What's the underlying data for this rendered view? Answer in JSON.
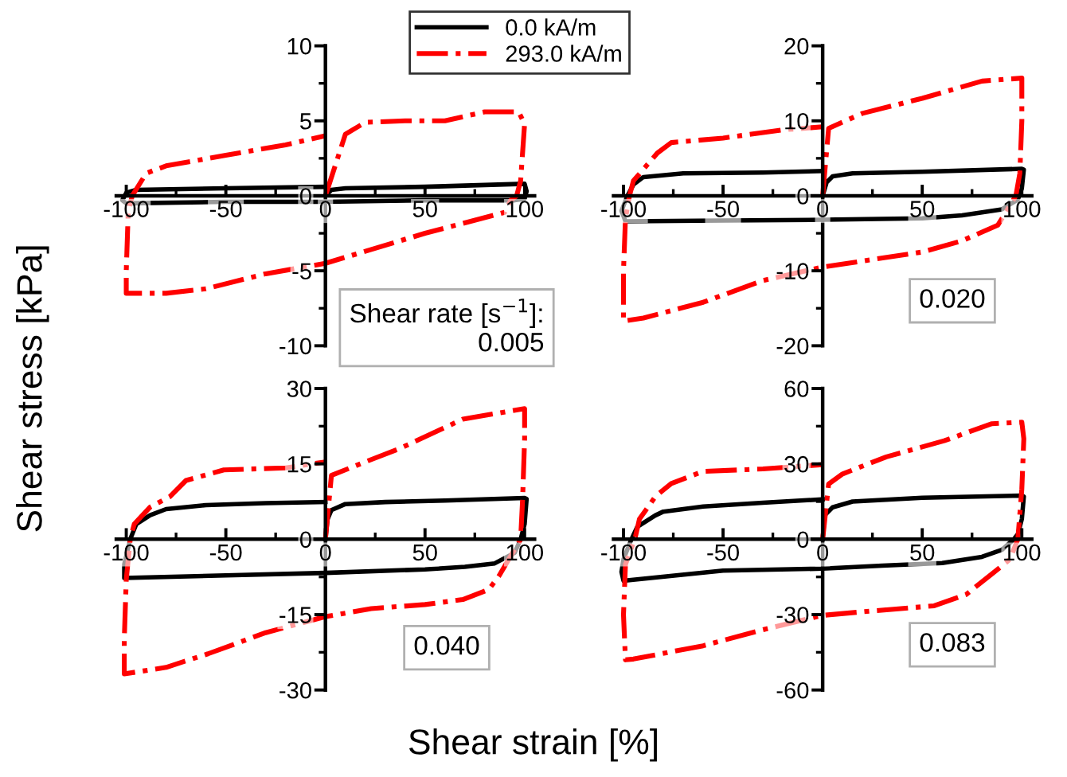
{
  "chart_data": [
    {
      "type": "line",
      "xlabel": "Shear strain [%]",
      "ylabel": "Shear stress [kPa]",
      "legend": "top",
      "xlim": [
        -105,
        105
      ],
      "xticks": [
        -100,
        -50,
        0,
        50,
        100
      ],
      "ylim": [
        -10,
        10
      ],
      "yticks": [
        -10,
        -5,
        0,
        5,
        10
      ],
      "annotations": [
        "Shear rate [s$^{−1}$]:\n0.005"
      ],
      "series": [
        {
          "name": "0.0 kA/m",
          "color": "#000000",
          "line_style": "solid",
          "x": [
            0,
            3,
            10,
            50,
            100,
            101,
            100,
            95,
            50,
            0,
            -50,
            -100,
            -102,
            -100,
            -95,
            -50,
            0
          ],
          "values": [
            0,
            0.4,
            0.5,
            0.6,
            0.8,
            0.3,
            -0.2,
            -0.3,
            -0.3,
            -0.4,
            -0.4,
            -0.5,
            -0.3,
            0.2,
            0.4,
            0.5,
            0.6
          ]
        },
        {
          "name": "293.0 kA/m",
          "color": "#ff0000",
          "line_style": "dashdot",
          "x": [
            0,
            10,
            20,
            40,
            60,
            80,
            97,
            100,
            98,
            96,
            93,
            90,
            50,
            0,
            -30,
            -60,
            -80,
            -100,
            -100,
            -99,
            -97,
            -90,
            -80,
            -50,
            -20,
            0
          ],
          "values": [
            0,
            4.1,
            4.9,
            5.0,
            5.0,
            5.6,
            5.6,
            4.8,
            1,
            0,
            -0.3,
            -1.1,
            -2.5,
            -4.5,
            -5.2,
            -6.2,
            -6.5,
            -6.5,
            -5,
            -1,
            0,
            1.5,
            2.0,
            2.7,
            3.4,
            4.0
          ]
        }
      ]
    },
    {
      "type": "line",
      "xlim": [
        -105,
        105
      ],
      "xticks": [
        -100,
        -50,
        0,
        50,
        100
      ],
      "ylim": [
        -20,
        20
      ],
      "yticks": [
        -20,
        -10,
        0,
        10,
        20
      ],
      "annotations": [
        "0.020"
      ],
      "series": [
        {
          "color": "#000000",
          "line_style": "solid",
          "x": [
            0,
            2,
            5,
            15,
            50,
            100,
            101,
            100,
            98,
            90,
            70,
            50,
            0,
            -50,
            -99,
            -101,
            -98,
            -95,
            -90,
            -70,
            -30,
            0
          ],
          "values": [
            0,
            1.8,
            2.6,
            3.0,
            3.2,
            3.6,
            3.5,
            1,
            -0.5,
            -1.8,
            -2.6,
            -3.0,
            -3.2,
            -3.3,
            -3.4,
            -2,
            0,
            1.5,
            2.5,
            3.0,
            3.1,
            3.3
          ]
        },
        {
          "color": "#ff0000",
          "line_style": "dashdot",
          "x": [
            0,
            3,
            20,
            50,
            80,
            100,
            100,
            99,
            97,
            88,
            70,
            50,
            0,
            -30,
            -60,
            -90,
            -100,
            -100,
            -99,
            -97,
            -95,
            -83,
            -76,
            -50,
            -20,
            0
          ],
          "values": [
            0,
            9,
            11,
            13,
            15.3,
            15.7,
            10,
            3,
            0,
            -3.9,
            -6,
            -7.5,
            -9.5,
            -11.3,
            -14.2,
            -16.3,
            -16.7,
            -10,
            -3,
            0,
            2,
            5.7,
            7.1,
            7.7,
            8.8,
            9.2
          ]
        }
      ]
    },
    {
      "type": "line",
      "xlim": [
        -105,
        105
      ],
      "xticks": [
        -100,
        -50,
        0,
        50,
        100
      ],
      "ylim": [
        -30,
        30
      ],
      "yticks": [
        -30,
        -15,
        0,
        15,
        30
      ],
      "annotations": [
        "0.040"
      ],
      "series": [
        {
          "color": "#000000",
          "line_style": "solid",
          "x": [
            0,
            1,
            3,
            10,
            30,
            60,
            100,
            101,
            100,
            98,
            95,
            85,
            70,
            50,
            0,
            -50,
            -101,
            -101,
            -98,
            -95,
            -88,
            -80,
            -60,
            -30,
            0
          ],
          "values": [
            0,
            3.9,
            5.8,
            7,
            7.4,
            7.7,
            8.2,
            8,
            3,
            0,
            -2.7,
            -4.8,
            -5.5,
            -6,
            -6.7,
            -7.2,
            -7.7,
            -5,
            0,
            3,
            4.8,
            6,
            6.8,
            7.2,
            7.4
          ]
        },
        {
          "color": "#ff0000",
          "line_style": "dashdot",
          "x": [
            0,
            3,
            20,
            37,
            69,
            100,
            100,
            99,
            98,
            87,
            82,
            69,
            50,
            23,
            0,
            -30,
            -59,
            -80,
            -101,
            -101,
            -100,
            -98,
            -96,
            -88,
            -78,
            -70,
            -51,
            -20,
            0
          ],
          "values": [
            0,
            12.7,
            15.4,
            18,
            23.9,
            26,
            20,
            8,
            0,
            -7.4,
            -10,
            -12,
            -13,
            -13.8,
            -15.4,
            -18.6,
            -22.8,
            -25.5,
            -26.8,
            -20,
            -8,
            0,
            3,
            6.4,
            8.5,
            11.7,
            13.8,
            14.2,
            15.4
          ]
        }
      ]
    },
    {
      "type": "line",
      "xlim": [
        -105,
        105
      ],
      "xticks": [
        -100,
        -50,
        0,
        50,
        100
      ],
      "ylim": [
        -60,
        60
      ],
      "yticks": [
        -60,
        -30,
        0,
        30,
        60
      ],
      "annotations": [
        "0.083"
      ],
      "series": [
        {
          "color": "#000000",
          "line_style": "solid",
          "x": [
            0,
            1,
            5,
            15,
            50,
            100,
            101,
            100,
            98,
            96,
            90,
            80,
            60,
            30,
            0,
            -50,
            -100,
            -101,
            -100,
            -96,
            -93,
            -84,
            -80,
            -60,
            -30,
            0
          ],
          "values": [
            0,
            9.5,
            12.7,
            15,
            16.5,
            17.4,
            17,
            8,
            2,
            0,
            -4.2,
            -7,
            -9.5,
            -10.5,
            -11.7,
            -12.5,
            -16.5,
            -13,
            -8,
            0,
            5,
            9.5,
            11,
            13,
            14.5,
            15.9
          ]
        },
        {
          "color": "#ff0000",
          "line_style": "dashdot",
          "x": [
            0,
            3,
            10,
            32,
            61,
            85,
            100,
            101,
            100,
            98,
            94,
            85,
            72,
            56,
            24,
            0,
            -30,
            -60,
            -95,
            -99,
            -100,
            -99,
            -94,
            -92,
            -84,
            -76,
            -60,
            -30,
            0
          ],
          "values": [
            0,
            22,
            26,
            32.8,
            39.2,
            46,
            46.6,
            40,
            20,
            0,
            -8,
            -13.8,
            -22,
            -26.5,
            -28.6,
            -30.3,
            -36,
            -42.4,
            -47.7,
            -48,
            -30,
            -10,
            1,
            8,
            17,
            22.2,
            27,
            28,
            29.7
          ]
        }
      ]
    }
  ]
}
